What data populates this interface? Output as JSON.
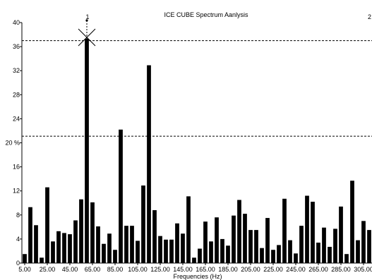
{
  "chart_data": {
    "type": "bar",
    "title": "ICE CUBE Spectrum Aanlysis",
    "xlabel": "Frequencies (Hz)",
    "ylabel": "",
    "ylim": [
      0,
      40
    ],
    "yticks": [
      "0",
      "4",
      "8",
      "12",
      "16",
      "20 %",
      "24",
      "28",
      "32",
      "36",
      "40"
    ],
    "xtick_labels": [
      "5.00",
      "25.00",
      "45.00",
      "65.00",
      "85.00",
      "105.00",
      "125.00",
      "145.00",
      "165.00",
      "185.00",
      "205.00",
      "225.00",
      "245.00",
      "265.00",
      "285.00",
      "305.00"
    ],
    "x_start": 5,
    "x_step": 5,
    "values": [
      1.5,
      9.3,
      6.3,
      0.9,
      12.6,
      3.6,
      5.3,
      5.0,
      4.8,
      7.1,
      10.6,
      37.3,
      10.1,
      6.1,
      3.2,
      4.9,
      2.2,
      22.2,
      6.2,
      6.2,
      3.7,
      12.9,
      32.9,
      8.8,
      4.5,
      3.9,
      3.9,
      6.6,
      4.9,
      11.1,
      0.9,
      2.4,
      6.9,
      3.6,
      7.6,
      4.0,
      2.9,
      7.9,
      10.5,
      8.2,
      5.5,
      5.5,
      2.5,
      7.5,
      2.2,
      3.0,
      10.7,
      3.8,
      1.6,
      6.2,
      11.2,
      10.2,
      3.4,
      5.9,
      2.7,
      5.7,
      9.4,
      1.5,
      13.7,
      3.8,
      7.0,
      5.5
    ],
    "reference_lines": [
      37.0,
      21.1
    ],
    "cursor": {
      "label": "1",
      "frequency": 60,
      "value": 37.3
    },
    "right_marker_label": "2",
    "grid": false
  },
  "colors": {
    "bar": "#000000",
    "axis": "#000000",
    "background": "#ffffff"
  }
}
